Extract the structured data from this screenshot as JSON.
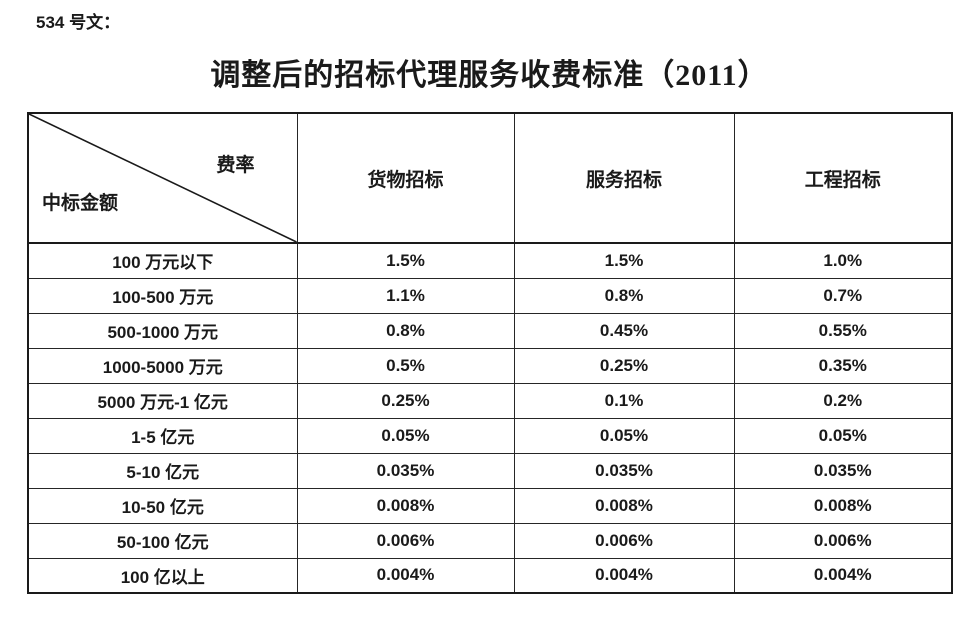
{
  "doc": {
    "label": "534 号文：",
    "title": "调整后的招标代理服务收费标准（2011）"
  },
  "table": {
    "corner": {
      "top_right": "费率",
      "bottom_left": "中标金额"
    },
    "columns": [
      "货物招标",
      "服务招标",
      "工程招标"
    ],
    "rows": [
      {
        "label": "100 万元以下",
        "values": [
          "1.5%",
          "1.5%",
          "1.0%"
        ]
      },
      {
        "label": "100-500 万元",
        "values": [
          "1.1%",
          "0.8%",
          "0.7%"
        ]
      },
      {
        "label": "500-1000 万元",
        "values": [
          "0.8%",
          "0.45%",
          "0.55%"
        ]
      },
      {
        "label": "1000-5000 万元",
        "values": [
          "0.5%",
          "0.25%",
          "0.35%"
        ]
      },
      {
        "label": "5000 万元-1 亿元",
        "values": [
          "0.25%",
          "0.1%",
          "0.2%"
        ]
      },
      {
        "label": "1-5 亿元",
        "values": [
          "0.05%",
          "0.05%",
          "0.05%"
        ]
      },
      {
        "label": "5-10 亿元",
        "values": [
          "0.035%",
          "0.035%",
          "0.035%"
        ]
      },
      {
        "label": "10-50 亿元",
        "values": [
          "0.008%",
          "0.008%",
          "0.008%"
        ]
      },
      {
        "label": "50-100 亿元",
        "values": [
          "0.006%",
          "0.006%",
          "0.006%"
        ]
      },
      {
        "label": "100 亿以上",
        "values": [
          "0.004%",
          "0.004%",
          "0.004%"
        ]
      }
    ]
  },
  "colors": {
    "background": "#ffffff",
    "text": "#1a1a1a",
    "border": "#262626"
  }
}
